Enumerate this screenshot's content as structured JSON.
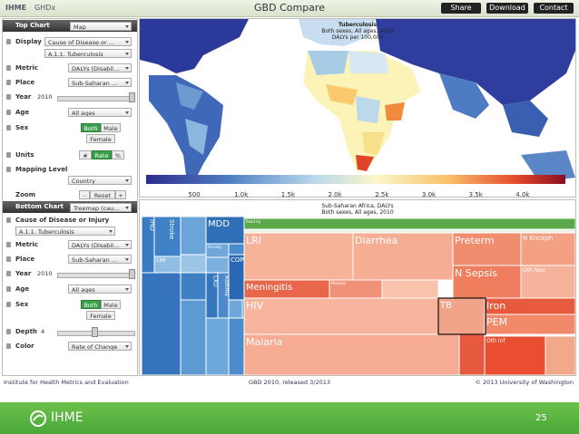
{
  "header": {
    "brand": "IHME",
    "sub": "GHDx",
    "title": "GBD Compare",
    "buttons": [
      "Share",
      "Download",
      "Contact"
    ]
  },
  "top_chart": {
    "header": "Top Chart",
    "type": "Map",
    "display": {
      "label": "Display",
      "value": "Cause of Disease or ...",
      "sub": "A.1.1. Tuberculosis"
    },
    "metric": {
      "label": "Metric",
      "value": "DALYs (Disabil..."
    },
    "place": {
      "label": "Place",
      "value": "Sub-Saharan ..."
    },
    "year": {
      "label": "Year",
      "value": "2010"
    },
    "age": {
      "label": "Age",
      "value": "All ages"
    },
    "sex": {
      "label": "Sex",
      "options": [
        "Both",
        "Male",
        "Female"
      ]
    },
    "units": {
      "label": "Units",
      "options": [
        "#",
        "Rate",
        "%"
      ]
    },
    "mapping": {
      "label": "Mapping Level",
      "value": "Country"
    },
    "zoom": {
      "label": "Zoom",
      "options": [
        "-",
        "Reset",
        "+"
      ]
    }
  },
  "bottom_chart": {
    "header": "Bottom Chart",
    "type": "Treemap (cau...",
    "cause": {
      "label": "Cause of Disease or Injury",
      "value": "A.1.1. Tuberculosis"
    },
    "metric": {
      "label": "Metric",
      "value": "DALYs (Disabil..."
    },
    "place": {
      "label": "Place",
      "value": "Sub-Saharan ..."
    },
    "year": {
      "label": "Year",
      "value": "2010"
    },
    "age": {
      "label": "Age",
      "value": "All ages"
    },
    "sex": {
      "label": "Sex",
      "options": [
        "Both",
        "Male",
        "Female"
      ]
    },
    "depth": {
      "label": "Depth",
      "value": "4"
    },
    "color": {
      "label": "Color",
      "value": "Rate of Change"
    }
  },
  "map": {
    "title": "Tuberculosis",
    "subtitle": "Both sexes, All ages, 2010",
    "units": "DALYs per 100,000",
    "legend_labels": [
      "500",
      "1.0k",
      "1.5k",
      "2.0k",
      "2.5k",
      "3.0k",
      "3.5k",
      "4.0k"
    ]
  },
  "treemap": {
    "title": "Sub-Saharan Africa, DALYs",
    "subtitle": "Both sexes, All ages, 2010",
    "nodes": [
      "IHD",
      "Stroke",
      "CMP",
      "MDD",
      "Anxiety",
      "COPD",
      "CKD",
      "Asthma",
      "Road Inj",
      "LRI",
      "Diarrhea",
      "Preterm",
      "N Enceph",
      "N Sepsis",
      "Oth Neo",
      "Meningitis",
      "Measles",
      "HIV",
      "TB",
      "Iron",
      "PEM",
      "Malaria",
      "Oth Inf"
    ]
  },
  "footer": {
    "left": "Institute for Health Metrics and Evaluation",
    "center": "GBD 2010, released 3/2013",
    "right": "© 2013 University of Washington"
  },
  "slide": {
    "logo": "IHME",
    "page": "25"
  }
}
